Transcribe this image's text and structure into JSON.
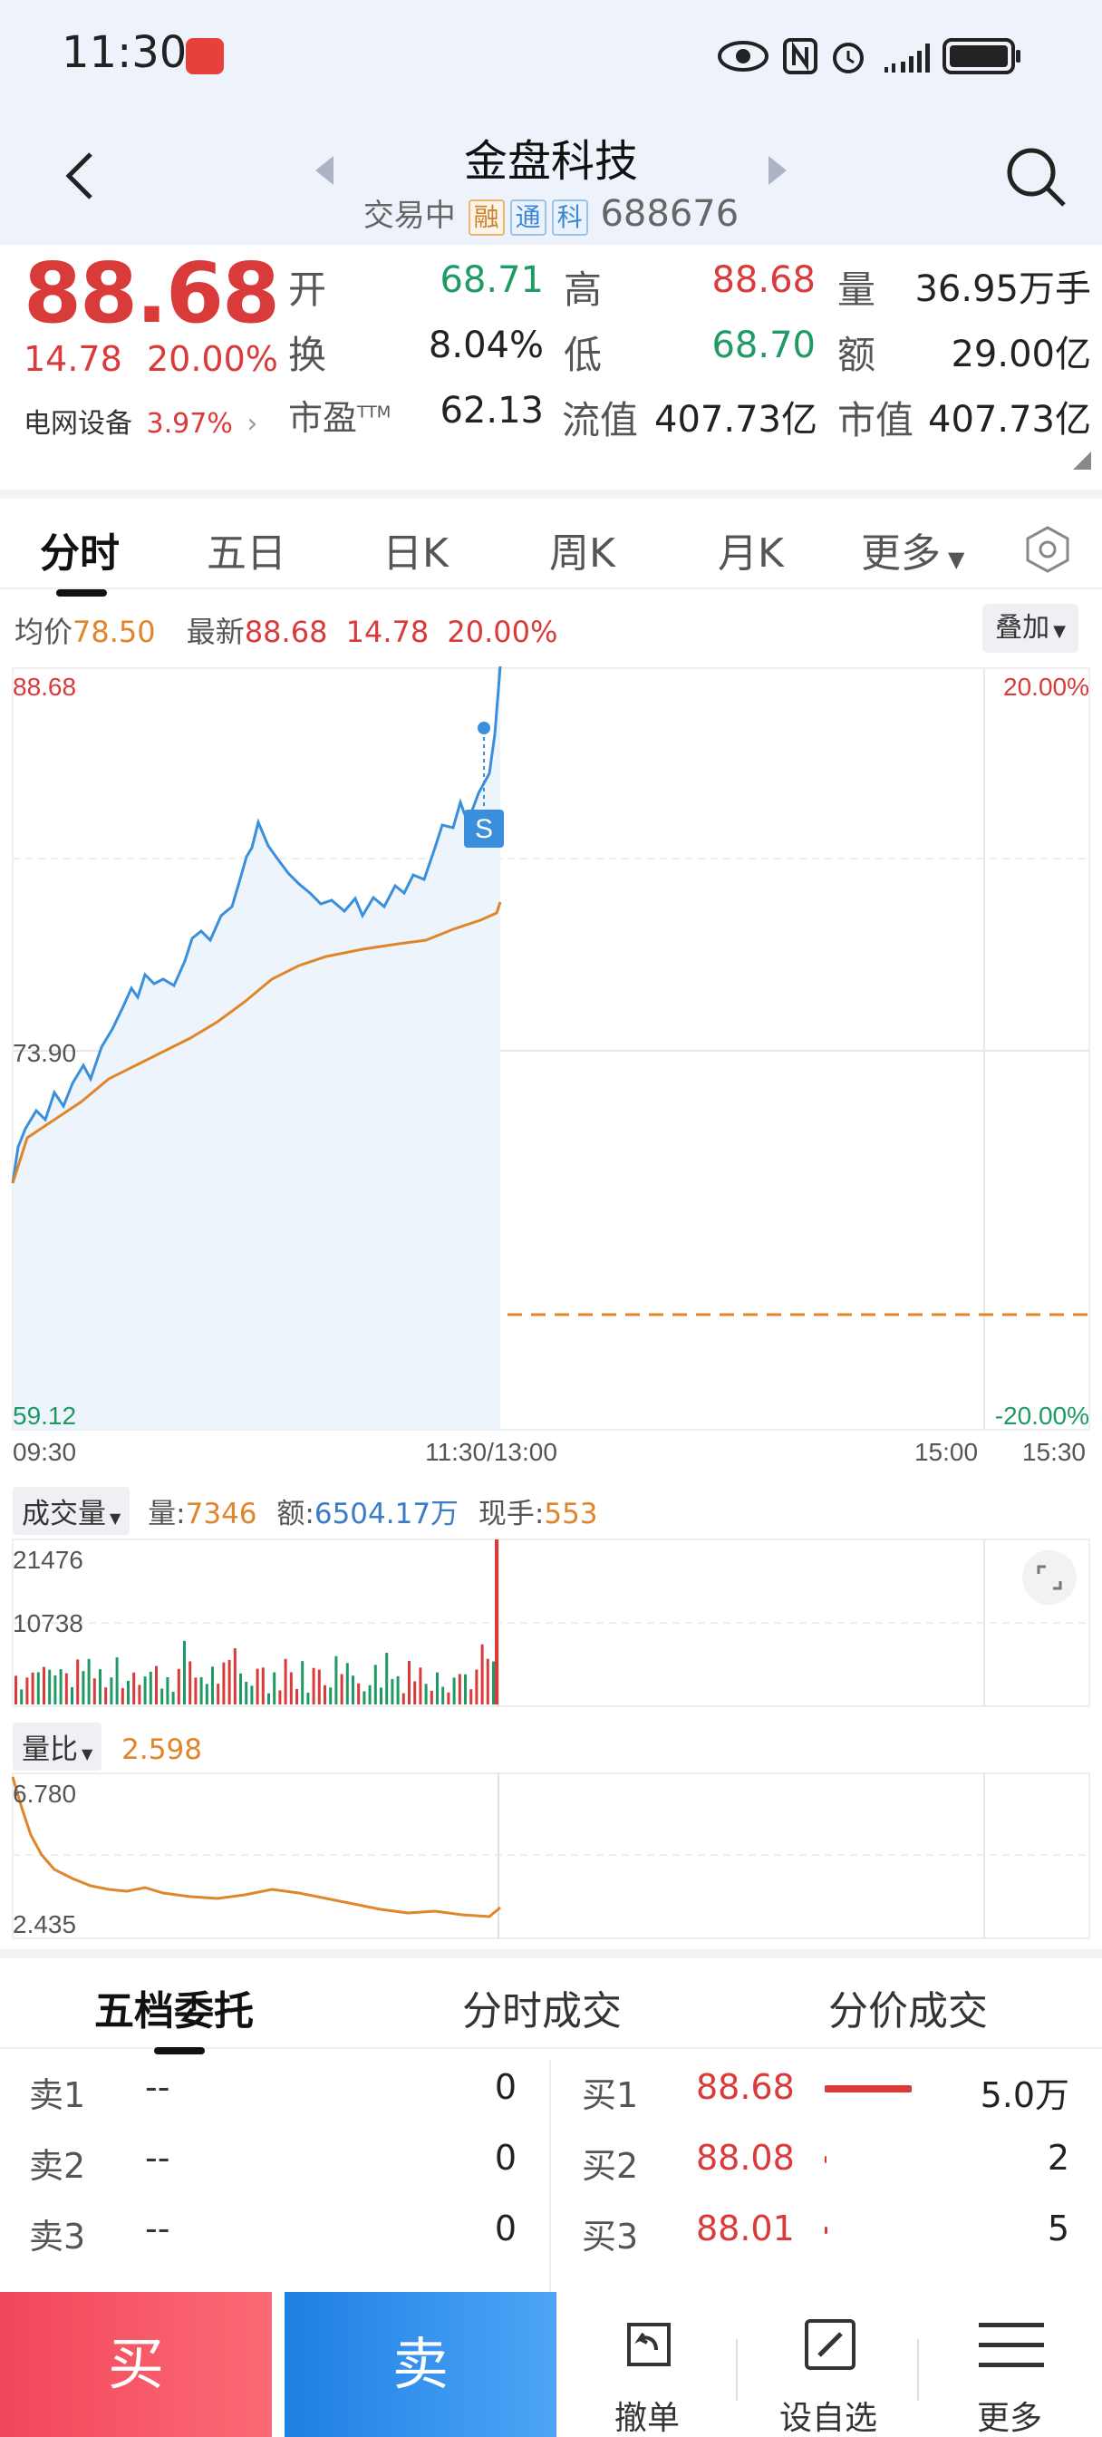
{
  "status_bar": {
    "time": "11:30"
  },
  "header": {
    "title": "金盘科技",
    "trading_status": "交易中",
    "tags": [
      "融",
      "通",
      "科"
    ],
    "code": "688676"
  },
  "quote": {
    "price": "88.68",
    "change": "14.78",
    "change_pct": "20.00%",
    "sector_name": "电网设备",
    "sector_pct": "3.97%",
    "open_label": "开",
    "open": "68.71",
    "high_label": "高",
    "high": "88.68",
    "volume_label": "量",
    "volume": "36.95万手",
    "turnover_label": "换",
    "turnover": "8.04%",
    "low_label": "低",
    "low": "68.70",
    "amount_label": "额",
    "amount": "29.00亿",
    "pe_label": "市盈",
    "pe_sup": "TTM",
    "pe": "62.13",
    "float_cap_label": "流值",
    "float_cap": "407.73亿",
    "market_cap_label": "市值",
    "market_cap": "407.73亿"
  },
  "tabs": [
    "分时",
    "五日",
    "日K",
    "周K",
    "月K",
    "更多"
  ],
  "intraday": {
    "avg_label": "均价",
    "avg": "78.50",
    "latest_label": "最新",
    "latest": "88.68",
    "latest_chg": "14.78",
    "latest_pct": "20.00%",
    "overlay_label": "叠加",
    "y_top": "88.68",
    "y_mid": "73.90",
    "y_bottom": "59.12",
    "pct_top": "20.00%",
    "pct_bottom": "-20.00%",
    "x_labels": [
      "09:30",
      "11:30/13:00",
      "15:00",
      "15:30"
    ],
    "marker": "S"
  },
  "volume": {
    "selector": "成交量",
    "vol_label": "量:",
    "vol": "7346",
    "amt_label": "额:",
    "amt": "6504.17万",
    "hand_label": "现手:",
    "hand": "553",
    "y_top": "21476",
    "y_mid": "10738"
  },
  "ratio": {
    "selector": "量比",
    "value": "2.598",
    "y_top": "6.780",
    "y_bottom": "2.435"
  },
  "orderbook_tabs": [
    "五档委托",
    "分时成交",
    "分价成交"
  ],
  "orderbook": {
    "sell": [
      {
        "label": "卖1",
        "price": "--",
        "qty": "0"
      },
      {
        "label": "卖2",
        "price": "--",
        "qty": "0"
      },
      {
        "label": "卖3",
        "price": "--",
        "qty": "0"
      }
    ],
    "buy": [
      {
        "label": "买1",
        "price": "88.68",
        "qty": "5.0万",
        "bar": 1.0
      },
      {
        "label": "买2",
        "price": "88.08",
        "qty": "2",
        "bar": 0.02
      },
      {
        "label": "买3",
        "price": "88.01",
        "qty": "5",
        "bar": 0.03
      }
    ]
  },
  "bottom_bar": {
    "buy": "买",
    "sell": "卖",
    "cancel": "撤单",
    "watchlist": "设自选",
    "more": "更多"
  },
  "colors": {
    "up": "#d93a3a",
    "down": "#1f9a64",
    "price_line": "#3a8fdc",
    "avg_line": "#e0862a"
  }
}
